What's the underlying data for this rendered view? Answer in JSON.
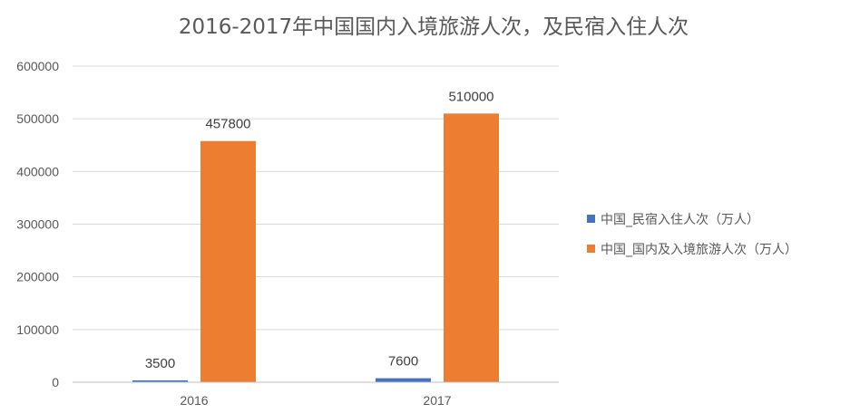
{
  "chart_data": {
    "type": "bar",
    "title": "2016-2017年中国国内入境旅游人次，及民宿入住人次",
    "categories": [
      "2016",
      "2017"
    ],
    "series": [
      {
        "name": "中国_民宿入住人次（万人）",
        "values": [
          3500,
          7600
        ],
        "color": "#4472c4"
      },
      {
        "name": "中国_国内及入境旅游人次（万人）",
        "values": [
          457800,
          510000
        ],
        "color": "#ed7d31"
      }
    ],
    "ylim": [
      0,
      600000
    ],
    "yticks": [
      0,
      100000,
      200000,
      300000,
      400000,
      500000,
      600000
    ],
    "grid": true,
    "legend": "right",
    "xlabel": "",
    "ylabel": ""
  }
}
